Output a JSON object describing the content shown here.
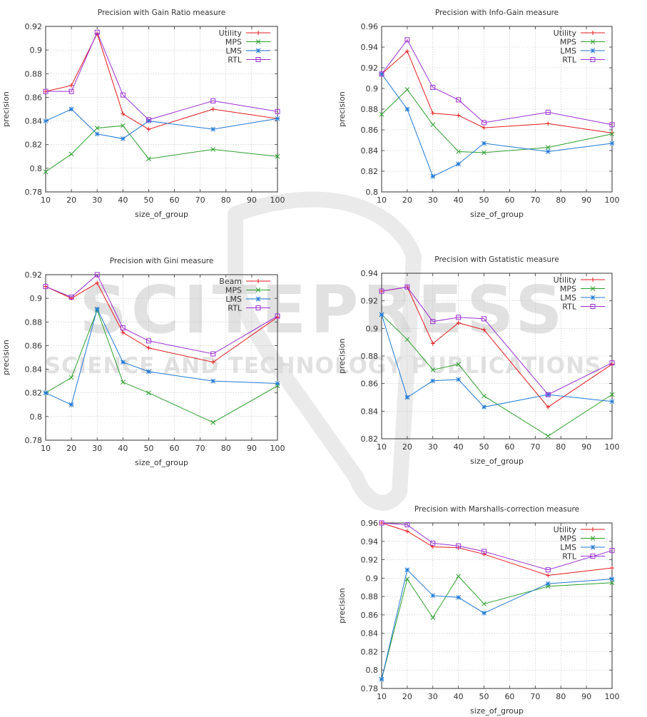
{
  "watermark": {
    "line1": "SCITEPRESS",
    "line2": "SCIENCE AND TECHNOLOGY PUBLICATIONS",
    "color": "#d8d8d8"
  },
  "colors": {
    "Utility": "#e41a1c",
    "Beam": "#e41a1c",
    "MPS": "#2ca02c",
    "LMS": "#1f78d4",
    "RTL": "#9b2fd1"
  },
  "chart_data": [
    {
      "id": "gain-ratio",
      "type": "line",
      "title": "Precision with Gain Ratio  measure",
      "xlabel": "size_of_group",
      "ylabel": "precision",
      "x": [
        10,
        20,
        30,
        40,
        50,
        75,
        100
      ],
      "xticks": [
        10,
        20,
        30,
        40,
        50,
        60,
        70,
        80,
        90,
        100
      ],
      "xlim": [
        10,
        100
      ],
      "ylim": [
        0.78,
        0.92
      ],
      "yticks": [
        "0.78",
        "0.8",
        "0.82",
        "0.84",
        "0.86",
        "0.88",
        "0.9",
        "0.92"
      ],
      "grid": true,
      "legend": "top-right",
      "series": [
        {
          "name": "Utility",
          "values": [
            0.865,
            0.87,
            0.914,
            0.846,
            0.833,
            0.85,
            0.842
          ]
        },
        {
          "name": "MPS",
          "values": [
            0.797,
            0.812,
            0.834,
            0.836,
            0.808,
            0.816,
            0.81
          ]
        },
        {
          "name": "LMS",
          "values": [
            0.84,
            0.85,
            0.829,
            0.825,
            0.84,
            0.833,
            0.842
          ]
        },
        {
          "name": "RTL",
          "values": [
            0.865,
            0.865,
            0.915,
            0.862,
            0.841,
            0.857,
            0.848
          ]
        }
      ]
    },
    {
      "id": "info-gain",
      "type": "line",
      "title": "Precision with Info-Gain  measure",
      "xlabel": "size_of_group",
      "ylabel": "precision",
      "x": [
        10,
        20,
        30,
        40,
        50,
        75,
        100
      ],
      "xticks": [
        10,
        20,
        30,
        40,
        50,
        60,
        70,
        80,
        90,
        100
      ],
      "xlim": [
        10,
        100
      ],
      "ylim": [
        0.8,
        0.96
      ],
      "yticks": [
        "0.8",
        "0.82",
        "0.84",
        "0.86",
        "0.88",
        "0.9",
        "0.92",
        "0.94",
        "0.96"
      ],
      "grid": true,
      "legend": "top-right",
      "series": [
        {
          "name": "Utility",
          "values": [
            0.914,
            0.936,
            0.876,
            0.874,
            0.862,
            0.866,
            0.857
          ]
        },
        {
          "name": "MPS",
          "values": [
            0.875,
            0.899,
            0.865,
            0.839,
            0.838,
            0.843,
            0.856
          ]
        },
        {
          "name": "LMS",
          "values": [
            0.914,
            0.88,
            0.815,
            0.827,
            0.847,
            0.839,
            0.847
          ]
        },
        {
          "name": "RTL",
          "values": [
            0.914,
            0.947,
            0.901,
            0.889,
            0.867,
            0.877,
            0.865
          ]
        }
      ]
    },
    {
      "id": "gini",
      "type": "line",
      "title": "Precision with Gini measure",
      "xlabel": "size_of_group",
      "ylabel": "precision",
      "x": [
        10,
        20,
        30,
        40,
        50,
        75,
        100
      ],
      "xticks": [
        10,
        20,
        30,
        40,
        50,
        60,
        70,
        80,
        90,
        100
      ],
      "xlim": [
        10,
        100
      ],
      "ylim": [
        0.78,
        0.92
      ],
      "yticks": [
        "0.78",
        "0.8",
        "0.82",
        "0.84",
        "0.86",
        "0.88",
        "0.9",
        "0.92"
      ],
      "grid": true,
      "legend": "top-right",
      "series": [
        {
          "name": "Beam",
          "values": [
            0.91,
            0.9,
            0.913,
            0.871,
            0.858,
            0.846,
            0.884
          ]
        },
        {
          "name": "MPS",
          "values": [
            0.82,
            0.833,
            0.89,
            0.829,
            0.82,
            0.795,
            0.826
          ]
        },
        {
          "name": "LMS",
          "values": [
            0.82,
            0.81,
            0.891,
            0.846,
            0.838,
            0.83,
            0.828
          ]
        },
        {
          "name": "RTL",
          "values": [
            0.91,
            0.901,
            0.92,
            0.875,
            0.864,
            0.853,
            0.885
          ]
        }
      ]
    },
    {
      "id": "gstatistic",
      "type": "line",
      "title": "Precision with Gstatistic  measure",
      "xlabel": "size_of_group",
      "ylabel": "precision",
      "x": [
        10,
        20,
        30,
        40,
        50,
        75,
        100
      ],
      "xticks": [
        10,
        20,
        30,
        40,
        50,
        60,
        70,
        80,
        90,
        100
      ],
      "xlim": [
        10,
        100
      ],
      "ylim": [
        0.82,
        0.94
      ],
      "yticks": [
        "0.82",
        "0.84",
        "0.86",
        "0.88",
        "0.9",
        "0.92",
        "0.94"
      ],
      "grid": true,
      "legend": "top-right",
      "series": [
        {
          "name": "Utility",
          "values": [
            0.927,
            0.93,
            0.889,
            0.904,
            0.899,
            0.843,
            0.874
          ]
        },
        {
          "name": "MPS",
          "values": [
            0.91,
            0.892,
            0.87,
            0.874,
            0.851,
            0.822,
            0.852
          ]
        },
        {
          "name": "LMS",
          "values": [
            0.91,
            0.85,
            0.862,
            0.863,
            0.843,
            0.852,
            0.847
          ]
        },
        {
          "name": "RTL",
          "values": [
            0.927,
            0.93,
            0.905,
            0.908,
            0.907,
            0.852,
            0.875
          ]
        }
      ]
    },
    {
      "id": "marshalls",
      "type": "line",
      "title": "Precision with Marshalls-correction  measure",
      "xlabel": "size_of_group",
      "ylabel": "precision",
      "x": [
        10,
        20,
        30,
        40,
        50,
        75,
        100
      ],
      "xticks": [
        10,
        20,
        30,
        40,
        50,
        60,
        70,
        80,
        90,
        100
      ],
      "xlim": [
        10,
        100
      ],
      "ylim": [
        0.78,
        0.96
      ],
      "yticks": [
        "0.78",
        "0.8",
        "0.82",
        "0.84",
        "0.86",
        "0.88",
        "0.9",
        "0.92",
        "0.94",
        "0.96"
      ],
      "grid": true,
      "legend": "top-right",
      "series": [
        {
          "name": "Utility",
          "values": [
            0.96,
            0.951,
            0.934,
            0.933,
            0.926,
            0.903,
            0.911
          ]
        },
        {
          "name": "MPS",
          "values": [
            0.79,
            0.899,
            0.857,
            0.902,
            0.872,
            0.891,
            0.895
          ]
        },
        {
          "name": "LMS",
          "values": [
            0.79,
            0.909,
            0.881,
            0.879,
            0.862,
            0.894,
            0.899
          ]
        },
        {
          "name": "RTL",
          "values": [
            0.96,
            0.958,
            0.938,
            0.935,
            0.929,
            0.909,
            0.93
          ]
        }
      ]
    }
  ]
}
